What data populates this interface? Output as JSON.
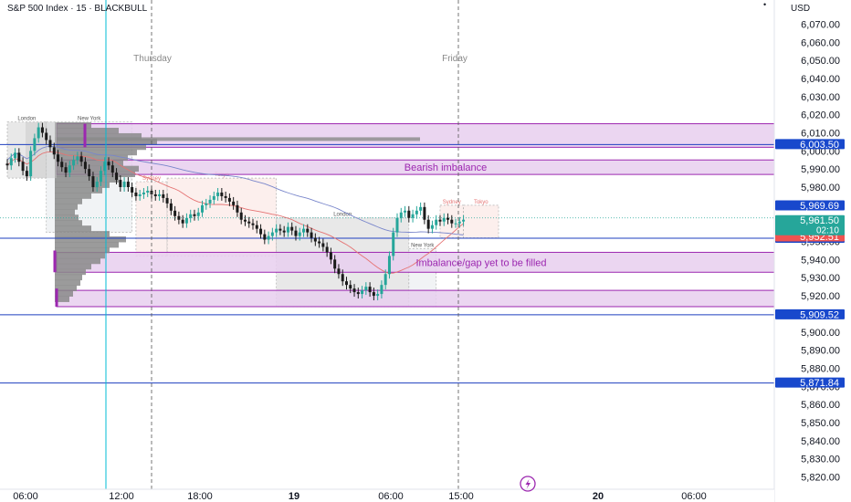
{
  "header": {
    "title": "S&P 500 Index · 15 · BLACKBULL",
    "currency": "USD",
    "dot": "•"
  },
  "colors": {
    "up": "#26a69a",
    "down": "#1a1a1a",
    "zone_fill": "#e8cfee",
    "zone_stroke": "#9c27b0",
    "zone_text": "#9c27b0",
    "level_line": "#1e3fbf",
    "level_tag": "#1848cc",
    "price_tag_green": "#26a69a",
    "price_tag_red": "#ef5350",
    "cursor_line": "#00bcd4",
    "sma_red": "#e57373",
    "sma_blue": "#7986cb",
    "volume_profile": "#8a8a8a",
    "session_asia": "#fbe9e7",
    "session_london": "#e0e0e0",
    "session_ny": "#eceff1",
    "lightning": "#9c27b0"
  },
  "chart_data": {
    "type": "candlestick",
    "symbol": "S&P 500 Index",
    "interval": "15",
    "broker": "BLACKBULL",
    "ylim": [
      5815,
      6080
    ],
    "y_ticks": [
      "6,070.00",
      "6,060.00",
      "6,050.00",
      "6,040.00",
      "6,030.00",
      "6,020.00",
      "6,010.00",
      "6,000.00",
      "5,990.00",
      "5,980.00",
      "5,970.00",
      "5,960.00",
      "5,950.00",
      "5,940.00",
      "5,930.00",
      "5,920.00",
      "5,910.00",
      "5,900.00",
      "5,890.00",
      "5,880.00",
      "5,870.00",
      "5,860.00",
      "5,850.00",
      "5,840.00",
      "5,830.00",
      "5,820.00"
    ],
    "y_tick_values": [
      6070,
      6060,
      6050,
      6040,
      6030,
      6020,
      6010,
      6000,
      5990,
      5980,
      5970,
      5960,
      5950,
      5940,
      5930,
      5920,
      5910,
      5900,
      5890,
      5880,
      5870,
      5860,
      5850,
      5840,
      5830,
      5820
    ],
    "x_ticks": [
      {
        "label": "06:00",
        "slot": 2
      },
      {
        "label": "12:00",
        "slot": 26
      },
      {
        "label": "18:00",
        "slot": 50
      },
      {
        "label": "19",
        "slot": 74
      },
      {
        "label": "06:00",
        "slot": 98
      },
      {
        "label": "15:00",
        "slot": 116
      },
      {
        "label": "20",
        "slot": 151
      },
      {
        "label": "06:00",
        "slot": 175
      }
    ],
    "day_labels": [
      {
        "label": "Thursday",
        "slot": 38
      },
      {
        "label": "Friday",
        "slot": 114
      }
    ],
    "closes": [
      5992,
      5996,
      5999,
      5994,
      5989,
      5986,
      6000,
      6007,
      6013,
      6010,
      6006,
      6002,
      5998,
      5994,
      5991,
      5988,
      5992,
      5995,
      5997,
      5994,
      5990,
      5986,
      5980,
      5983,
      5989,
      5994,
      5992,
      5988,
      5984,
      5980,
      5983,
      5980,
      5977,
      5975,
      5976,
      5977,
      5978,
      5976,
      5975,
      5976,
      5974,
      5971,
      5967,
      5964,
      5962,
      5960,
      5963,
      5965,
      5964,
      5966,
      5970,
      5971,
      5973,
      5975,
      5977,
      5975,
      5974,
      5972,
      5970,
      5966,
      5962,
      5961,
      5960,
      5959,
      5957,
      5954,
      5951,
      5953,
      5955,
      5957,
      5956,
      5955,
      5958,
      5956,
      5953,
      5955,
      5957,
      5955,
      5952,
      5950,
      5949,
      5947,
      5944,
      5940,
      5935,
      5932,
      5928,
      5926,
      5924,
      5922,
      5921,
      5923,
      5925,
      5922,
      5920,
      5921,
      5926,
      5932,
      5942,
      5955,
      5963,
      5966,
      5967,
      5963,
      5965,
      5967,
      5969,
      5962,
      5957,
      5959,
      5962,
      5961,
      5963,
      5962,
      5960,
      5960,
      5961,
      5962
    ],
    "levels": [
      {
        "value": 6003.5,
        "label": "6,003.50"
      },
      {
        "value": 5951.78,
        "label": "5,951.78"
      },
      {
        "value": 5909.52,
        "label": "5,909.52"
      },
      {
        "value": 5871.84,
        "label": "5,871.84"
      }
    ],
    "price_tags": {
      "high": {
        "value": 5969.69,
        "label": "5,969.69"
      },
      "last": {
        "value": 5961.5,
        "label": "5,961.50",
        "countdown": "02:10"
      },
      "prev": {
        "value": 5952.51,
        "label": "5,952.51"
      }
    },
    "zones": [
      {
        "top": 6015,
        "bottom": 6002,
        "label": ""
      },
      {
        "top": 5995,
        "bottom": 5987,
        "label": "Bearish imbalance"
      },
      {
        "top": 5944,
        "bottom": 5933,
        "label": "Imbalance/gap yet to be filled"
      },
      {
        "top": 5923,
        "bottom": 5914,
        "label": ""
      }
    ],
    "sessions": [
      {
        "label": "London",
        "start": 0,
        "end": 10,
        "top": 6016,
        "bottom": 5985
      },
      {
        "label": "New York",
        "start": 10,
        "end": 32,
        "top": 6016,
        "bottom": 5955
      },
      {
        "label": "Sydney",
        "start": 33,
        "end": 41,
        "top": 5983,
        "bottom": 5942
      },
      {
        "label": "Tokyo",
        "start": 41,
        "end": 69,
        "top": 5985,
        "bottom": 5942
      },
      {
        "label": "London",
        "start": 69,
        "end": 103,
        "top": 5963,
        "bottom": 5914
      },
      {
        "label": "New York",
        "start": 103,
        "end": 110,
        "top": 5946,
        "bottom": 5914
      },
      {
        "label": "Sydney",
        "start": 111,
        "end": 117,
        "top": 5970,
        "bottom": 5952
      },
      {
        "label": "Tokyo",
        "start": 117,
        "end": 126,
        "top": 5970,
        "bottom": 5952
      }
    ],
    "grid": false,
    "legend": "none"
  }
}
